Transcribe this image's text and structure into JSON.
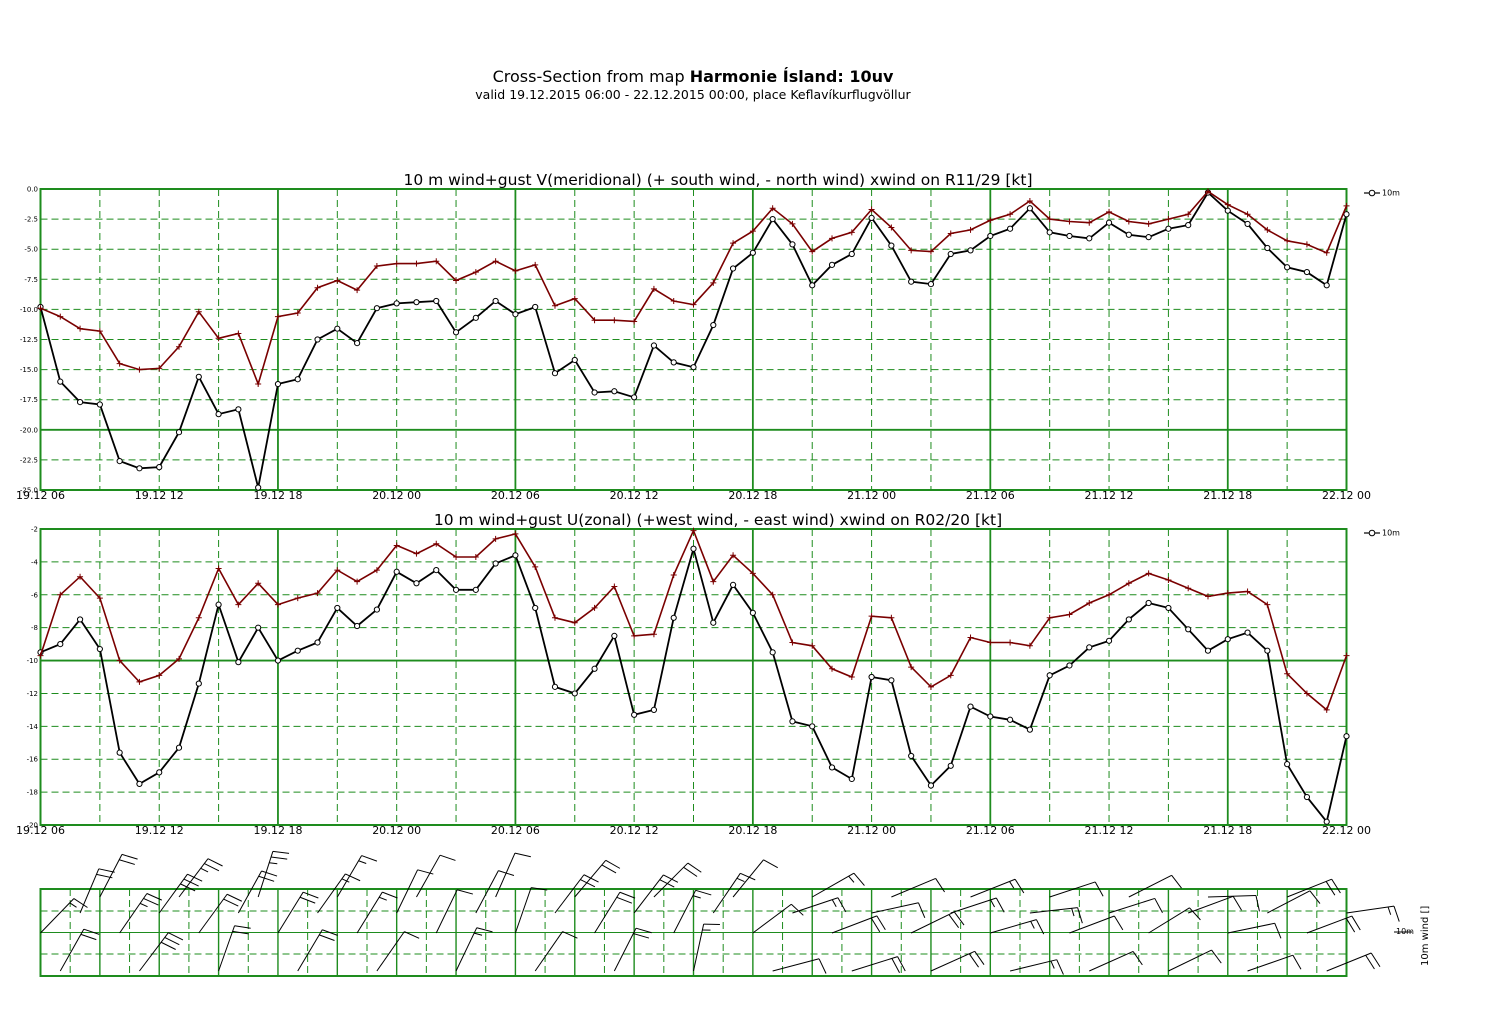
{
  "header": {
    "title_prefix": "Cross-Section from map ",
    "title_bold": "Harmonie Ísland: 10uv",
    "subtitle": "valid 19.12.2015 06:00 - 22.12.2015 00:00, place Keflavíkurflugvöllur"
  },
  "colors": {
    "grid": "#1e8c1e",
    "wind": "#000000",
    "gust": "#7a0000"
  },
  "x_tick_labels": [
    "19.12 06",
    "19.12 12",
    "19.12 18",
    "20.12 00",
    "20.12 06",
    "20.12 12",
    "20.12 18",
    "21.12 00",
    "21.12 06",
    "21.12 12",
    "21.12 18",
    "22.12 00"
  ],
  "barb_panel": {
    "legend_label": "10m",
    "axis_label": "10m wind []"
  },
  "chart_data": [
    {
      "type": "line",
      "title": "10 m wind+gust V(meridional) (+ south wind, - north wind) xwind on R11/29 [kt]",
      "x_start": "19.12.2015 06:00",
      "x_step_hours": 1,
      "ylim": [
        -25,
        0
      ],
      "yticks": [
        "0.0",
        "-2.5",
        "-5.0",
        "-7.5",
        "-10.0",
        "-12.5",
        "-15.0",
        "-17.5",
        "-20.0",
        "-22.5",
        "-25.0"
      ],
      "legend": "10m",
      "series": [
        {
          "name": "10m",
          "marker": "circle",
          "values": [
            -9.8,
            -16.0,
            -17.7,
            -17.9,
            -22.6,
            -23.2,
            -23.1,
            -20.2,
            -15.6,
            -18.7,
            -18.3,
            -24.8,
            -16.2,
            -15.8,
            -12.5,
            -11.6,
            -12.8,
            -9.9,
            -9.5,
            -9.4,
            -9.3,
            -11.9,
            -10.7,
            -9.3,
            -10.4,
            -9.8,
            -15.3,
            -14.2,
            -16.9,
            -16.8,
            -17.3,
            -13.0,
            -14.4,
            -14.8,
            -11.3,
            -6.6,
            -5.3,
            -2.5,
            -4.6,
            -8.0,
            -6.3,
            -5.4,
            -2.4,
            -4.7,
            -7.7,
            -7.9,
            -5.4,
            -5.1,
            -3.9,
            -3.3,
            -1.6,
            -3.6,
            -3.9,
            -4.1,
            -2.8,
            -3.8,
            -4.0,
            -3.3,
            -3.0,
            -0.3,
            -1.8,
            -2.9,
            -4.9,
            -6.5,
            -6.9,
            -8.0,
            -2.1
          ]
        },
        {
          "name": "",
          "marker": "plus",
          "values": [
            -9.9,
            -10.6,
            -11.6,
            -11.8,
            -14.5,
            -15.0,
            -14.9,
            -13.1,
            -10.2,
            -12.4,
            -12.0,
            -16.2,
            -10.6,
            -10.3,
            -8.2,
            -7.6,
            -8.4,
            -6.4,
            -6.2,
            -6.2,
            -6.0,
            -7.6,
            -6.9,
            -6.0,
            -6.8,
            -6.3,
            -9.7,
            -9.1,
            -10.9,
            -10.9,
            -11.0,
            -8.3,
            -9.3,
            -9.6,
            -7.8,
            -4.5,
            -3.5,
            -1.6,
            -2.9,
            -5.2,
            -4.1,
            -3.6,
            -1.7,
            -3.2,
            -5.1,
            -5.2,
            -3.7,
            -3.4,
            -2.6,
            -2.1,
            -1.0,
            -2.5,
            -2.7,
            -2.8,
            -1.9,
            -2.7,
            -2.9,
            -2.5,
            -2.1,
            -0.2,
            -1.3,
            -2.1,
            -3.4,
            -4.3,
            -4.6,
            -5.3,
            -1.4
          ]
        }
      ]
    },
    {
      "type": "line",
      "title": "10 m wind+gust U(zonal) (+west wind, - east wind) xwind on R02/20 [kt]",
      "x_start": "19.12.2015 06:00",
      "x_step_hours": 1,
      "ylim": [
        -20,
        -2
      ],
      "yticks": [
        "-2",
        "-4",
        "-6",
        "-8",
        "-10",
        "-12",
        "-14",
        "-16",
        "-18",
        "-20"
      ],
      "legend": "10m",
      "series": [
        {
          "name": "10m",
          "marker": "circle",
          "values": [
            -9.5,
            -9.0,
            -7.5,
            -9.3,
            -15.6,
            -17.5,
            -16.8,
            -15.3,
            -11.4,
            -6.6,
            -10.1,
            -8.0,
            -10.0,
            -9.4,
            -8.9,
            -6.8,
            -7.9,
            -6.9,
            -4.6,
            -5.3,
            -4.5,
            -5.7,
            -5.7,
            -4.1,
            -3.6,
            -6.8,
            -11.6,
            -12.0,
            -10.5,
            -8.5,
            -13.3,
            -13.0,
            -7.4,
            -3.2,
            -7.7,
            -5.4,
            -7.1,
            -9.5,
            -13.7,
            -14.0,
            -16.5,
            -17.2,
            -11.0,
            -11.2,
            -15.8,
            -17.6,
            -16.4,
            -12.8,
            -13.4,
            -13.6,
            -14.2,
            -10.9,
            -10.3,
            -9.2,
            -8.8,
            -7.5,
            -6.5,
            -6.8,
            -8.1,
            -9.4,
            -8.7,
            -8.3,
            -9.4,
            -16.3,
            -18.3,
            -19.8,
            -14.6
          ]
        },
        {
          "name": "",
          "marker": "plus",
          "values": [
            -9.7,
            -6.0,
            -4.9,
            -6.2,
            -10.0,
            -11.3,
            -10.9,
            -9.9,
            -7.4,
            -4.4,
            -6.6,
            -5.3,
            -6.6,
            -6.2,
            -5.9,
            -4.5,
            -5.2,
            -4.5,
            -3.0,
            -3.5,
            -2.9,
            -3.7,
            -3.7,
            -2.6,
            -2.3,
            -4.3,
            -7.4,
            -7.7,
            -6.8,
            -5.5,
            -8.5,
            -8.4,
            -4.8,
            -2.1,
            -5.2,
            -3.6,
            -4.7,
            -6.0,
            -8.9,
            -9.1,
            -10.5,
            -11.0,
            -7.3,
            -7.4,
            -10.4,
            -11.6,
            -10.9,
            -8.6,
            -8.9,
            -8.9,
            -9.1,
            -7.4,
            -7.2,
            -6.5,
            -6.0,
            -5.3,
            -4.7,
            -5.1,
            -5.6,
            -6.1,
            -5.9,
            -5.8,
            -6.6,
            -10.8,
            -12.0,
            -13.0,
            -9.7
          ]
        }
      ]
    }
  ]
}
